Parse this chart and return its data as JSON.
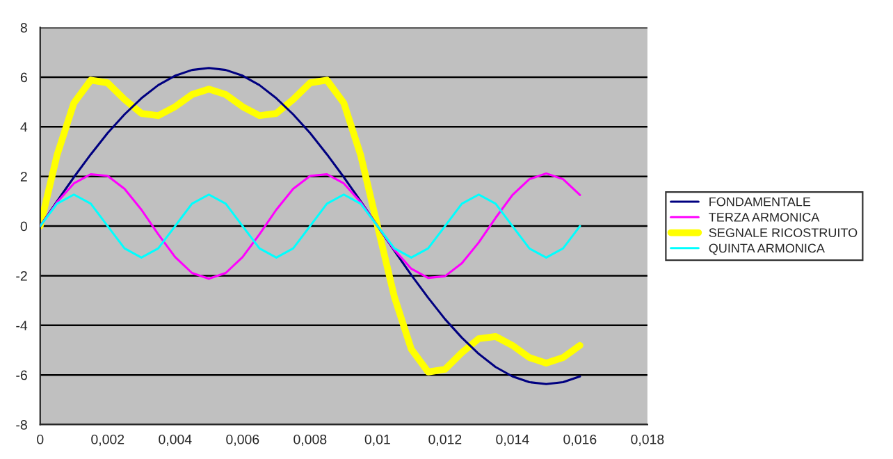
{
  "chart_data": {
    "type": "line",
    "x": [
      0,
      0.0005,
      0.001,
      0.0015,
      0.002,
      0.0025,
      0.003,
      0.0035,
      0.004,
      0.0045,
      0.005,
      0.0055,
      0.006,
      0.0065,
      0.007,
      0.0075,
      0.008,
      0.0085,
      0.009,
      0.0095,
      0.01,
      0.0105,
      0.011,
      0.0115,
      0.012,
      0.0125,
      0.013,
      0.0135,
      0.014,
      0.0145,
      0.015,
      0.0155,
      0.016
    ],
    "series": [
      {
        "name": "FONDAMENTALE",
        "color": "#000080",
        "values": [
          0,
          1.0,
          1.97,
          2.89,
          3.75,
          4.5,
          5.15,
          5.68,
          6.06,
          6.29,
          6.37,
          6.29,
          6.06,
          5.68,
          5.15,
          4.5,
          3.75,
          2.89,
          1.97,
          1.0,
          0,
          -1.0,
          -1.97,
          -2.89,
          -3.75,
          -4.5,
          -5.15,
          -5.68,
          -6.06,
          -6.29,
          -6.37,
          -6.29,
          -6.06
        ]
      },
      {
        "name": "TERZA ARMONICA",
        "color": "#ff00ff",
        "values": [
          0,
          0.96,
          1.72,
          2.09,
          2.02,
          1.5,
          0.66,
          -0.33,
          -1.25,
          -1.89,
          -2.12,
          -1.89,
          -1.25,
          -0.33,
          0.66,
          1.5,
          2.02,
          2.09,
          1.72,
          0.96,
          0,
          -0.96,
          -1.72,
          -2.09,
          -2.02,
          -1.5,
          -0.66,
          0.33,
          1.25,
          1.89,
          2.12,
          1.89,
          1.25
        ]
      },
      {
        "name": "SEGNALE RICOSTRUITO",
        "color": "#ffff00",
        "values": [
          0,
          2.86,
          4.96,
          5.88,
          5.77,
          5.1,
          4.54,
          4.45,
          4.81,
          5.3,
          5.52,
          5.3,
          4.81,
          4.45,
          4.54,
          5.1,
          5.77,
          5.88,
          4.96,
          2.86,
          0,
          -2.86,
          -4.96,
          -5.88,
          -5.77,
          -5.1,
          -4.54,
          -4.45,
          -4.81,
          -5.3,
          -5.52,
          -5.3,
          -4.81
        ]
      },
      {
        "name": "QUINTA ARMONICA",
        "color": "#00ffff",
        "values": [
          0,
          0.9,
          1.27,
          0.9,
          0,
          -0.9,
          -1.27,
          -0.9,
          0,
          0.9,
          1.27,
          0.9,
          0,
          -0.9,
          -1.27,
          -0.9,
          0,
          0.9,
          1.27,
          0.9,
          0,
          -0.9,
          -1.27,
          -0.9,
          0,
          0.9,
          1.27,
          0.9,
          0,
          -0.9,
          -1.27,
          -0.9,
          0
        ]
      }
    ],
    "xlim": [
      0,
      0.018
    ],
    "xticks": [
      0,
      {
        "value": 0.002,
        "label": "0,002"
      },
      {
        "value": 0.004,
        "label": "0,004"
      },
      {
        "value": 0.006,
        "label": "0,006"
      },
      {
        "value": 0.008,
        "label": "0,008"
      },
      {
        "value": 0.01,
        "label": "0,01"
      },
      {
        "value": 0.012,
        "label": "0,012"
      },
      {
        "value": 0.014,
        "label": "0,014"
      },
      {
        "value": 0.016,
        "label": "0,016"
      },
      {
        "value": 0.018,
        "label": "0,018"
      }
    ],
    "ylim": [
      -8,
      8
    ],
    "yticks": [
      -8,
      -6,
      -4,
      -2,
      0,
      2,
      4,
      6,
      8
    ],
    "grid": "y",
    "legend": "right",
    "marker": "none",
    "line_style": "solid"
  }
}
